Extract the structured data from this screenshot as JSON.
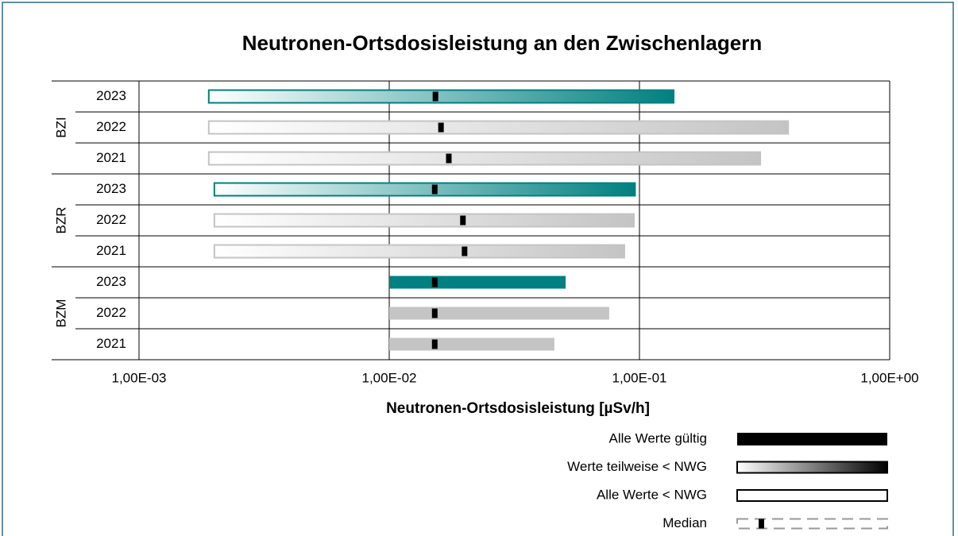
{
  "chart_data": {
    "type": "range",
    "title": "Neutronen-Ortsdosisleistung an den Zwischenlagern",
    "xlabel": "Neutronen-Ortsdosisleistung [µSv/h]",
    "xlog": true,
    "xlim": [
      0.001,
      1
    ],
    "xticks": [
      {
        "value": 0.001,
        "label": "1,00E-03"
      },
      {
        "value": 0.01,
        "label": "1,00E-02"
      },
      {
        "value": 0.1,
        "label": "1,00E-01"
      },
      {
        "value": 1,
        "label": "1,00E+00"
      }
    ],
    "grid": true,
    "groups": [
      {
        "name": "BZI",
        "rows": [
          {
            "category": "2023",
            "low": 0.0019,
            "high": 0.137,
            "median": 0.0153,
            "status": "partial",
            "color": "#008080"
          },
          {
            "category": "2022",
            "low": 0.0019,
            "high": 0.393,
            "median": 0.0161,
            "status": "partial",
            "color": "#c4c4c4"
          },
          {
            "category": "2021",
            "low": 0.0019,
            "high": 0.304,
            "median": 0.0173,
            "status": "partial",
            "color": "#c4c4c4"
          }
        ]
      },
      {
        "name": "BZR",
        "rows": [
          {
            "category": "2023",
            "low": 0.002,
            "high": 0.096,
            "median": 0.0152,
            "status": "partial",
            "color": "#008080"
          },
          {
            "category": "2022",
            "low": 0.002,
            "high": 0.095,
            "median": 0.0197,
            "status": "partial",
            "color": "#c4c4c4"
          },
          {
            "category": "2021",
            "low": 0.002,
            "high": 0.087,
            "median": 0.02,
            "status": "partial",
            "color": "#c4c4c4"
          }
        ]
      },
      {
        "name": "BZM",
        "rows": [
          {
            "category": "2023",
            "low": 0.01,
            "high": 0.0507,
            "median": 0.0152,
            "status": "valid",
            "color": "#008080"
          },
          {
            "category": "2022",
            "low": 0.01,
            "high": 0.0757,
            "median": 0.0152,
            "status": "valid",
            "color": "#c4c4c4"
          },
          {
            "category": "2021",
            "low": 0.01,
            "high": 0.0457,
            "median": 0.0152,
            "status": "valid",
            "color": "#c4c4c4"
          }
        ]
      }
    ],
    "legend": [
      {
        "label": "Alle Werte gültig",
        "status": "valid"
      },
      {
        "label": "Werte teilweise < NWG",
        "status": "partial"
      },
      {
        "label": "Alle Werte < NWG",
        "status": "none"
      },
      {
        "label": "Median",
        "status": "median"
      }
    ]
  }
}
